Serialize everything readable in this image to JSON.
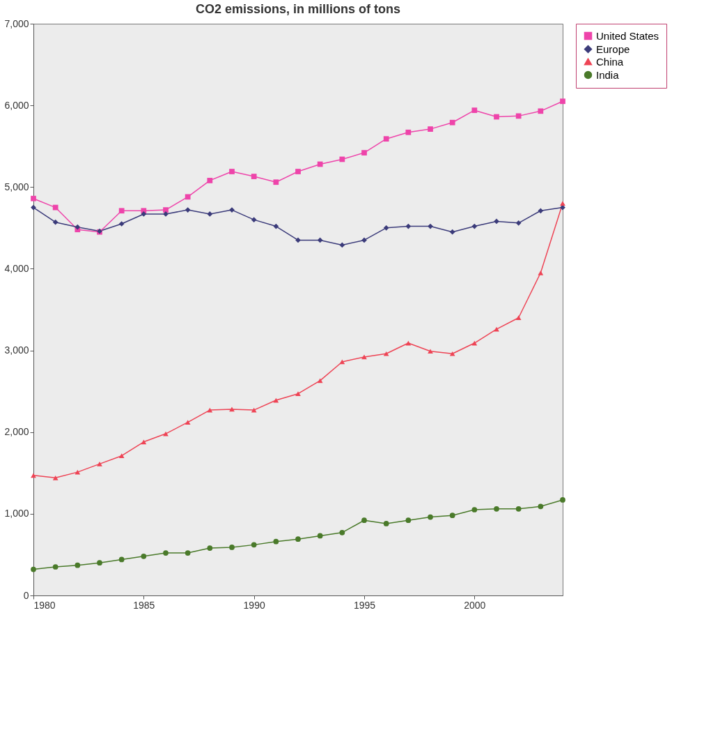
{
  "chart_data": {
    "type": "line",
    "title": "CO2 emissions, in millions of tons",
    "x": [
      1980,
      1981,
      1982,
      1983,
      1984,
      1985,
      1986,
      1987,
      1988,
      1989,
      1990,
      1991,
      1992,
      1993,
      1994,
      1995,
      1996,
      1997,
      1998,
      1999,
      2000,
      2001,
      2002,
      2003,
      2004
    ],
    "xlim": [
      1980,
      2004
    ],
    "xticks": [
      1980,
      1985,
      1990,
      1995,
      2000
    ],
    "ylim": [
      0,
      7000
    ],
    "yticks": [
      0,
      {
        "value": 1000,
        "label": "1,000"
      },
      {
        "value": 2000,
        "label": "2,000"
      },
      {
        "value": 3000,
        "label": "3,000"
      },
      {
        "value": 4000,
        "label": "4,000"
      },
      {
        "value": 5000,
        "label": "5,000"
      },
      {
        "value": 6000,
        "label": "6,000"
      },
      {
        "value": 7000,
        "label": "7,000"
      }
    ],
    "legend": "right",
    "series": [
      {
        "name": "United States",
        "color": "#ee44aa",
        "marker": "square",
        "values": [
          4860,
          4750,
          4480,
          4450,
          4710,
          4710,
          4720,
          4880,
          5080,
          5190,
          5130,
          5060,
          5190,
          5280,
          5340,
          5420,
          5590,
          5670,
          5710,
          5790,
          5940,
          5860,
          5870,
          5930,
          6050
        ]
      },
      {
        "name": "Europe",
        "color": "#3b3b7a",
        "marker": "diamond",
        "values": [
          4750,
          4570,
          4510,
          4460,
          4550,
          4670,
          4670,
          4720,
          4670,
          4720,
          4600,
          4520,
          4350,
          4350,
          4290,
          4350,
          4500,
          4520,
          4520,
          4450,
          4520,
          4580,
          4560,
          4710,
          4750
        ]
      },
      {
        "name": "China",
        "color": "#ee4455",
        "marker": "triangle",
        "values": [
          1470,
          1440,
          1510,
          1610,
          1710,
          1880,
          1980,
          2120,
          2270,
          2280,
          2270,
          2390,
          2470,
          2630,
          2860,
          2920,
          2960,
          3090,
          2990,
          2960,
          3090,
          3260,
          3400,
          3950,
          4800
        ]
      },
      {
        "name": "India",
        "color": "#4a7a2a",
        "marker": "circle",
        "values": [
          320,
          350,
          370,
          400,
          440,
          480,
          520,
          520,
          580,
          590,
          620,
          660,
          690,
          730,
          770,
          920,
          880,
          920,
          960,
          980,
          1050,
          1060,
          1060,
          1090,
          1170
        ]
      }
    ]
  }
}
